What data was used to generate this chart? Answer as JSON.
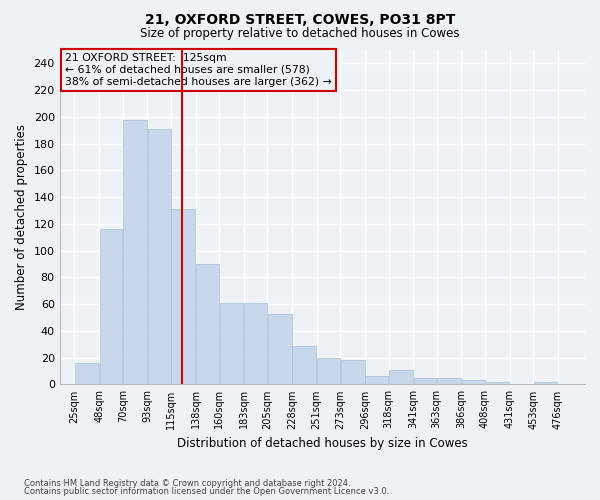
{
  "title1": "21, OXFORD STREET, COWES, PO31 8PT",
  "title2": "Size of property relative to detached houses in Cowes",
  "xlabel": "Distribution of detached houses by size in Cowes",
  "ylabel": "Number of detached properties",
  "bar_color": "#c8d8ea",
  "bar_edge_color": "#a8c0d8",
  "vline_x": 125,
  "vline_color": "#cc0000",
  "annotation_title": "21 OXFORD STREET:  125sqm",
  "annotation_line2": "← 61% of detached houses are smaller (578)",
  "annotation_line3": "38% of semi-detached houses are larger (362) →",
  "annotation_box_color": "#cc0000",
  "footnote1": "Contains HM Land Registry data © Crown copyright and database right 2024.",
  "footnote2": "Contains public sector information licensed under the Open Government Licence v3.0.",
  "bin_edges": [
    25,
    48,
    70,
    93,
    115,
    138,
    160,
    183,
    205,
    228,
    251,
    273,
    296,
    318,
    341,
    363,
    386,
    408,
    431,
    453,
    476,
    499
  ],
  "values": [
    16,
    116,
    198,
    191,
    131,
    90,
    61,
    61,
    53,
    29,
    20,
    18,
    6,
    11,
    5,
    5,
    3,
    2,
    0,
    2,
    0
  ],
  "tick_labels": [
    "25sqm",
    "48sqm",
    "70sqm",
    "93sqm",
    "115sqm",
    "138sqm",
    "160sqm",
    "183sqm",
    "205sqm",
    "228sqm",
    "251sqm",
    "273sqm",
    "296sqm",
    "318sqm",
    "341sqm",
    "363sqm",
    "386sqm",
    "408sqm",
    "431sqm",
    "453sqm",
    "476sqm"
  ],
  "ylim": [
    0,
    250
  ],
  "yticks": [
    0,
    20,
    40,
    60,
    80,
    100,
    120,
    140,
    160,
    180,
    200,
    220,
    240
  ],
  "bg_color": "#eef2f7",
  "grid_color": "#ffffff",
  "figsize": [
    6.0,
    5.0
  ],
  "dpi": 100
}
